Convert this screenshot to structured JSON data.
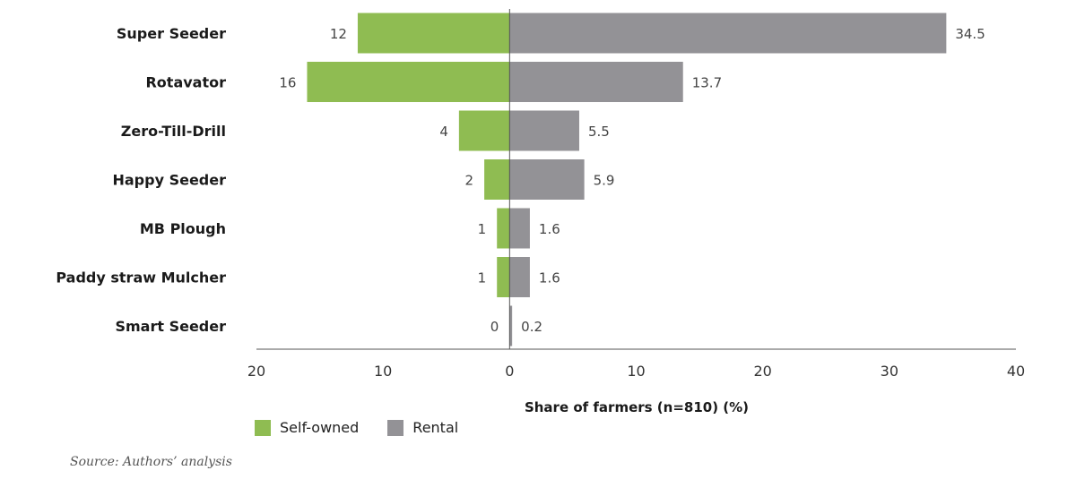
{
  "chart_data": {
    "type": "bar",
    "orientation": "horizontal-diverging",
    "categories": [
      "Super Seeder",
      "Rotavator",
      "Zero-Till-Drill",
      "Happy Seeder",
      "MB Plough",
      "Paddy straw Mulcher",
      "Smart Seeder"
    ],
    "series": [
      {
        "name": "Self-owned",
        "values": [
          12,
          16,
          4,
          2,
          1,
          1,
          0
        ],
        "value_labels": [
          "12",
          "16",
          "4",
          "2",
          "1",
          "1",
          "0"
        ],
        "color": "#8fbc52",
        "side": "left"
      },
      {
        "name": "Rental",
        "values": [
          34.5,
          13.7,
          5.5,
          5.9,
          1.6,
          1.6,
          0.2
        ],
        "value_labels": [
          "34.5",
          "13.7",
          "5.5",
          "5.9",
          "1.6",
          "1.6",
          "0.2"
        ],
        "color": "#939296",
        "side": "right"
      }
    ],
    "xlabel": "Share of farmers (n=810) (%)",
    "xlim": [
      -20,
      40
    ],
    "x_ticks": [
      -20,
      -10,
      0,
      10,
      20,
      30,
      40
    ],
    "x_tick_labels": [
      "20",
      "10",
      "0",
      "10",
      "20",
      "30",
      "40"
    ],
    "grid": false,
    "legend_position": "bottom-left"
  },
  "legend": {
    "items": [
      {
        "label": "Self-owned",
        "color": "#8fbc52",
        "icon": "green-square"
      },
      {
        "label": "Rental",
        "color": "#939296",
        "icon": "grey-square"
      }
    ]
  },
  "source": "Source: Authors’ analysis"
}
